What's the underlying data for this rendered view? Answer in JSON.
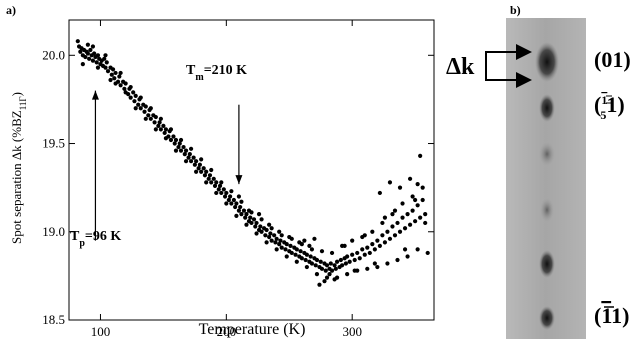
{
  "panel_a": {
    "label": "a)",
    "annotations": {
      "tp": {
        "main": "T",
        "sub": "p",
        "rest": "=96 K"
      },
      "tm": {
        "main": "T",
        "sub": "m",
        "rest": "=210 K"
      }
    }
  },
  "panel_b": {
    "label": "b)",
    "dk": {
      "delta": "Δ",
      "k": "k"
    },
    "spot_labels": {
      "s01": "(01)",
      "s51_open": "(",
      "s51_bar": "1",
      "s51_denom": "5",
      "s51_close": "1)",
      "s11_open": "(",
      "s11_bar": "1",
      "s11_close": "1)"
    }
  },
  "chart_data": {
    "type": "scatter",
    "title": "",
    "xlabel": "Temperature (K)",
    "ylabel": "Spot separation Δk (%BZ",
    "ylabel_sub": "11Γ",
    "ylabel_close": ")",
    "xlim": [
      75,
      365
    ],
    "ylim": [
      18.5,
      20.2
    ],
    "xticks": [
      100,
      200,
      300
    ],
    "yticks": [
      18.5,
      19.0,
      19.5,
      20.0
    ],
    "xtick_labels": [
      "100",
      "200",
      "300"
    ],
    "ytick_labels": [
      "18.5",
      "19.0",
      "19.5",
      "20.0"
    ],
    "grid": false,
    "annotation_arrows": [
      {
        "label": "Tp=96 K",
        "x": 96,
        "y_from": 18.95,
        "y_to": 19.8
      },
      {
        "label": "Tm=210 K",
        "x": 210,
        "y_from": 19.72,
        "y_to": 19.27
      }
    ],
    "points": [
      [
        82,
        20.08
      ],
      [
        83,
        20.05
      ],
      [
        84,
        20.02
      ],
      [
        85,
        20.04
      ],
      [
        86,
        20.0
      ],
      [
        87,
        20.03
      ],
      [
        88,
        19.99
      ],
      [
        89,
        20.02
      ],
      [
        90,
        20.01
      ],
      [
        91,
        19.98
      ],
      [
        92,
        20.03
      ],
      [
        93,
        20.0
      ],
      [
        94,
        19.97
      ],
      [
        95,
        20.01
      ],
      [
        96,
        19.99
      ],
      [
        97,
        19.96
      ],
      [
        98,
        20.0
      ],
      [
        99,
        19.98
      ],
      [
        100,
        19.95
      ],
      [
        101,
        19.97
      ],
      [
        102,
        19.94
      ],
      [
        103,
        19.98
      ],
      [
        104,
        19.93
      ],
      [
        105,
        19.96
      ],
      [
        106,
        19.91
      ],
      [
        108,
        19.93
      ],
      [
        109,
        19.89
      ],
      [
        110,
        19.92
      ],
      [
        111,
        19.87
      ],
      [
        112,
        19.9
      ],
      [
        114,
        19.85
      ],
      [
        115,
        19.88
      ],
      [
        116,
        19.83
      ],
      [
        118,
        19.85
      ],
      [
        119,
        19.81
      ],
      [
        120,
        19.84
      ],
      [
        122,
        19.78
      ],
      [
        123,
        19.81
      ],
      [
        124,
        19.76
      ],
      [
        126,
        19.79
      ],
      [
        127,
        19.74
      ],
      [
        128,
        19.77
      ],
      [
        130,
        19.72
      ],
      [
        131,
        19.75
      ],
      [
        132,
        19.7
      ],
      [
        134,
        19.72
      ],
      [
        135,
        19.68
      ],
      [
        136,
        19.71
      ],
      [
        138,
        19.66
      ],
      [
        139,
        19.69
      ],
      [
        140,
        19.64
      ],
      [
        142,
        19.66
      ],
      [
        143,
        19.62
      ],
      [
        144,
        19.65
      ],
      [
        146,
        19.6
      ],
      [
        147,
        19.62
      ],
      [
        148,
        19.58
      ],
      [
        150,
        19.6
      ],
      [
        151,
        19.56
      ],
      [
        152,
        19.58
      ],
      [
        154,
        19.54
      ],
      [
        155,
        19.57
      ],
      [
        156,
        19.52
      ],
      [
        158,
        19.54
      ],
      [
        159,
        19.5
      ],
      [
        160,
        19.52
      ],
      [
        162,
        19.48
      ],
      [
        163,
        19.5
      ],
      [
        164,
        19.46
      ],
      [
        166,
        19.48
      ],
      [
        167,
        19.44
      ],
      [
        168,
        19.46
      ],
      [
        170,
        19.42
      ],
      [
        171,
        19.44
      ],
      [
        172,
        19.4
      ],
      [
        174,
        19.42
      ],
      [
        175,
        19.38
      ],
      [
        176,
        19.4
      ],
      [
        178,
        19.36
      ],
      [
        179,
        19.38
      ],
      [
        180,
        19.34
      ],
      [
        182,
        19.36
      ],
      [
        183,
        19.32
      ],
      [
        184,
        19.34
      ],
      [
        186,
        19.3
      ],
      [
        187,
        19.32
      ],
      [
        188,
        19.28
      ],
      [
        190,
        19.3
      ],
      [
        191,
        19.26
      ],
      [
        192,
        19.28
      ],
      [
        194,
        19.24
      ],
      [
        195,
        19.26
      ],
      [
        196,
        19.22
      ],
      [
        198,
        19.24
      ],
      [
        199,
        19.2
      ],
      [
        200,
        19.22
      ],
      [
        202,
        19.18
      ],
      [
        203,
        19.2
      ],
      [
        204,
        19.16
      ],
      [
        206,
        19.18
      ],
      [
        207,
        19.14
      ],
      [
        208,
        19.16
      ],
      [
        210,
        19.12
      ],
      [
        211,
        19.14
      ],
      [
        212,
        19.1
      ],
      [
        214,
        19.12
      ],
      [
        215,
        19.08
      ],
      [
        216,
        19.1
      ],
      [
        218,
        19.06
      ],
      [
        219,
        19.08
      ],
      [
        220,
        19.05
      ],
      [
        222,
        19.07
      ],
      [
        223,
        19.03
      ],
      [
        224,
        19.05
      ],
      [
        226,
        19.01
      ],
      [
        227,
        19.03
      ],
      [
        228,
        19.0
      ],
      [
        230,
        19.02
      ],
      [
        231,
        18.98
      ],
      [
        232,
        19.01
      ],
      [
        234,
        18.97
      ],
      [
        235,
        18.99
      ],
      [
        236,
        18.95
      ],
      [
        238,
        18.98
      ],
      [
        239,
        18.94
      ],
      [
        240,
        18.96
      ],
      [
        242,
        18.93
      ],
      [
        243,
        18.95
      ],
      [
        244,
        18.91
      ],
      [
        246,
        18.94
      ],
      [
        247,
        18.9
      ],
      [
        248,
        18.93
      ],
      [
        250,
        18.89
      ],
      [
        251,
        18.92
      ],
      [
        252,
        18.88
      ],
      [
        254,
        18.91
      ],
      [
        255,
        18.87
      ],
      [
        256,
        18.9
      ],
      [
        258,
        18.86
      ],
      [
        259,
        18.89
      ],
      [
        260,
        18.85
      ],
      [
        262,
        18.88
      ],
      [
        263,
        18.84
      ],
      [
        264,
        18.87
      ],
      [
        266,
        18.83
      ],
      [
        267,
        18.86
      ],
      [
        268,
        18.82
      ],
      [
        270,
        18.85
      ],
      [
        271,
        18.81
      ],
      [
        272,
        18.84
      ],
      [
        274,
        18.8
      ],
      [
        275,
        18.83
      ],
      [
        276,
        18.79
      ],
      [
        278,
        18.82
      ],
      [
        279,
        18.78
      ],
      [
        280,
        18.81
      ],
      [
        282,
        18.79
      ],
      [
        283,
        18.82
      ],
      [
        284,
        18.78
      ],
      [
        286,
        18.81
      ],
      [
        287,
        18.79
      ],
      [
        288,
        18.83
      ],
      [
        290,
        18.8
      ],
      [
        291,
        18.84
      ],
      [
        292,
        18.81
      ],
      [
        294,
        18.85
      ],
      [
        295,
        18.82
      ],
      [
        296,
        18.86
      ],
      [
        298,
        18.83
      ],
      [
        300,
        18.87
      ],
      [
        302,
        18.84
      ],
      [
        304,
        18.88
      ],
      [
        306,
        18.85
      ],
      [
        308,
        18.9
      ],
      [
        310,
        18.87
      ],
      [
        312,
        18.91
      ],
      [
        314,
        18.88
      ],
      [
        316,
        18.93
      ],
      [
        318,
        18.9
      ],
      [
        320,
        18.95
      ],
      [
        322,
        18.92
      ],
      [
        324,
        18.98
      ],
      [
        326,
        18.94
      ],
      [
        328,
        19.0
      ],
      [
        330,
        18.96
      ],
      [
        332,
        19.03
      ],
      [
        334,
        18.98
      ],
      [
        336,
        19.05
      ],
      [
        338,
        19.0
      ],
      [
        340,
        19.08
      ],
      [
        342,
        19.02
      ],
      [
        344,
        19.1
      ],
      [
        346,
        19.04
      ],
      [
        348,
        19.12
      ],
      [
        350,
        19.06
      ],
      [
        352,
        19.15
      ],
      [
        354,
        19.08
      ],
      [
        356,
        19.18
      ],
      [
        358,
        19.1
      ],
      [
        86,
        19.95
      ],
      [
        90,
        20.06
      ],
      [
        94,
        20.05
      ],
      [
        98,
        19.93
      ],
      [
        104,
        20.0
      ],
      [
        108,
        19.86
      ],
      [
        112,
        19.84
      ],
      [
        116,
        19.9
      ],
      [
        120,
        19.79
      ],
      [
        124,
        19.82
      ],
      [
        128,
        19.7
      ],
      [
        132,
        19.76
      ],
      [
        136,
        19.64
      ],
      [
        140,
        19.7
      ],
      [
        144,
        19.58
      ],
      [
        148,
        19.64
      ],
      [
        152,
        19.53
      ],
      [
        156,
        19.58
      ],
      [
        160,
        19.46
      ],
      [
        164,
        19.52
      ],
      [
        168,
        19.4
      ],
      [
        172,
        19.47
      ],
      [
        176,
        19.34
      ],
      [
        180,
        19.41
      ],
      [
        184,
        19.28
      ],
      [
        188,
        19.35
      ],
      [
        192,
        19.22
      ],
      [
        196,
        19.28
      ],
      [
        200,
        19.16
      ],
      [
        204,
        19.23
      ],
      [
        208,
        19.09
      ],
      [
        212,
        19.17
      ],
      [
        216,
        19.04
      ],
      [
        220,
        19.11
      ],
      [
        224,
        18.99
      ],
      [
        228,
        19.07
      ],
      [
        232,
        18.94
      ],
      [
        236,
        19.02
      ],
      [
        240,
        18.9
      ],
      [
        244,
        18.98
      ],
      [
        248,
        18.86
      ],
      [
        252,
        18.96
      ],
      [
        256,
        18.83
      ],
      [
        260,
        18.93
      ],
      [
        264,
        18.8
      ],
      [
        268,
        18.9
      ],
      [
        272,
        18.76
      ],
      [
        276,
        18.89
      ],
      [
        280,
        18.74
      ],
      [
        284,
        18.88
      ],
      [
        288,
        18.74
      ],
      [
        292,
        18.92
      ],
      [
        296,
        18.76
      ],
      [
        300,
        18.95
      ],
      [
        304,
        18.78
      ],
      [
        308,
        18.97
      ],
      [
        312,
        18.79
      ],
      [
        316,
        19.0
      ],
      [
        320,
        18.8
      ],
      [
        324,
        19.05
      ],
      [
        328,
        18.82
      ],
      [
        332,
        19.1
      ],
      [
        336,
        18.84
      ],
      [
        340,
        19.16
      ],
      [
        344,
        18.86
      ],
      [
        348,
        19.2
      ],
      [
        352,
        18.9
      ],
      [
        356,
        19.25
      ],
      [
        262,
        18.95
      ],
      [
        270,
        18.96
      ],
      [
        278,
        18.72
      ],
      [
        286,
        18.73
      ],
      [
        294,
        18.92
      ],
      [
        302,
        18.78
      ],
      [
        310,
        18.98
      ],
      [
        318,
        18.82
      ],
      [
        326,
        19.08
      ],
      [
        334,
        19.12
      ],
      [
        342,
        18.9
      ],
      [
        350,
        19.18
      ],
      [
        354,
        19.43
      ],
      [
        352,
        19.27
      ],
      [
        330,
        19.28
      ],
      [
        322,
        19.22
      ],
      [
        338,
        19.25
      ],
      [
        346,
        19.3
      ],
      [
        358,
        19.05
      ],
      [
        360,
        18.88
      ],
      [
        210,
        19.2
      ],
      [
        218,
        19.12
      ],
      [
        226,
        19.1
      ],
      [
        234,
        19.04
      ],
      [
        242,
        19.0
      ],
      [
        250,
        18.97
      ],
      [
        258,
        18.94
      ],
      [
        266,
        18.92
      ],
      [
        274,
        18.7
      ],
      [
        282,
        18.76
      ]
    ]
  }
}
